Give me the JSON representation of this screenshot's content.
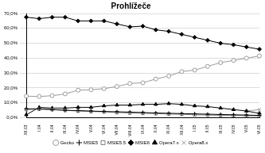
{
  "chart_data": {
    "type": "line",
    "title": "Prohlížeče",
    "categories": [
      "XII.03",
      "I.04",
      "II.04",
      "III.04",
      "IV.04",
      "V.04",
      "VI.04",
      "VII.04",
      "VIII.04",
      "IX.04",
      "X.04",
      "XI.04",
      "XII.04",
      "I.05",
      "II.05",
      "III.05",
      "IV.05",
      "V.05",
      "VI.05"
    ],
    "series": [
      {
        "name": "Gecko",
        "color": "#9a9a9a",
        "marker": "circle",
        "values": [
          14.5,
          14.3,
          14.8,
          16,
          18.5,
          18.8,
          19.5,
          21,
          23,
          23.5,
          26,
          28,
          31,
          32,
          34.5,
          37,
          38.5,
          40,
          41.5
        ]
      },
      {
        "name": "MSIE5",
        "color": "#000000",
        "marker": "cross",
        "values": [
          6,
          6,
          5.5,
          5,
          4.8,
          4.5,
          4.2,
          4,
          3.8,
          3.5,
          3.2,
          3,
          2.8,
          2.6,
          2.4,
          2.2,
          2,
          1.8,
          1.6
        ]
      },
      {
        "name": "MSIE5.5",
        "color": "#808080",
        "marker": "rect",
        "values": [
          5.5,
          5.8,
          5.5,
          5,
          4.5,
          4.2,
          4,
          3.5,
          3.2,
          3,
          2.8,
          2.5,
          2.3,
          2,
          1.8,
          1.6,
          1.5,
          1.3,
          1.2
        ]
      },
      {
        "name": "MSIE6",
        "color": "#000000",
        "marker": "rectRot",
        "values": [
          67.5,
          66.5,
          67.5,
          67.5,
          65,
          65,
          65,
          63,
          61,
          61.5,
          59,
          58,
          56,
          54,
          52,
          50,
          49,
          47.5,
          46
        ]
      },
      {
        "name": "Opera7.x",
        "color": "#000000",
        "marker": "triangle",
        "values": [
          2,
          7,
          6.5,
          6.5,
          7,
          7,
          8,
          8.5,
          8.5,
          9,
          9,
          9.5,
          9,
          8,
          7.5,
          6.5,
          5.5,
          4.5,
          3
        ]
      },
      {
        "name": "Opera8.x",
        "color": "#9a9a9a",
        "marker": "crossRot",
        "values": [
          null,
          null,
          null,
          null,
          null,
          null,
          null,
          null,
          null,
          null,
          null,
          null,
          null,
          null,
          null,
          null,
          null,
          4.5,
          5.5
        ]
      }
    ],
    "ylim": [
      0,
      70
    ],
    "yticks": [
      {
        "value": 0,
        "label": "0,0%"
      },
      {
        "value": 10,
        "label": "10,0%"
      },
      {
        "value": 20,
        "label": "20,0%"
      },
      {
        "value": 30,
        "label": "30,0%"
      },
      {
        "value": 40,
        "label": "40,0%"
      },
      {
        "value": 50,
        "label": "50,0%"
      },
      {
        "value": 60,
        "label": "60,0%"
      },
      {
        "value": 70,
        "label": "70,0%"
      }
    ],
    "grid": true,
    "legend": "bottom"
  }
}
